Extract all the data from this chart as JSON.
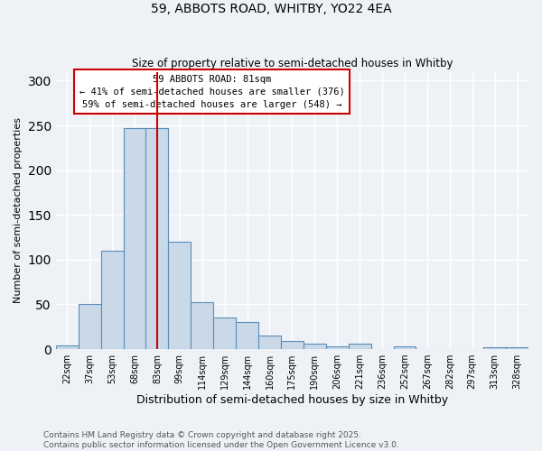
{
  "title1": "59, ABBOTS ROAD, WHITBY, YO22 4EA",
  "title2": "Size of property relative to semi-detached houses in Whitby",
  "xlabel": "Distribution of semi-detached houses by size in Whitby",
  "ylabel": "Number of semi-detached properties",
  "bin_labels": [
    "22sqm",
    "37sqm",
    "53sqm",
    "68sqm",
    "83sqm",
    "99sqm",
    "114sqm",
    "129sqm",
    "144sqm",
    "160sqm",
    "175sqm",
    "190sqm",
    "206sqm",
    "221sqm",
    "236sqm",
    "252sqm",
    "267sqm",
    "282sqm",
    "297sqm",
    "313sqm",
    "328sqm"
  ],
  "bar_heights": [
    4,
    50,
    110,
    247,
    247,
    120,
    52,
    35,
    30,
    15,
    9,
    6,
    3,
    6,
    0,
    3,
    0,
    0,
    0,
    2,
    2
  ],
  "bar_color": "#c9d9e8",
  "bar_edge_color": "#5b8db8",
  "vline_x": 4.0,
  "vline_color": "#cc0000",
  "annotation_text": "59 ABBOTS ROAD: 81sqm\n← 41% of semi-detached houses are smaller (376)\n59% of semi-detached houses are larger (548) →",
  "annotation_box_color": "#cc0000",
  "ylim": [
    0,
    310
  ],
  "yticks": [
    0,
    50,
    100,
    150,
    200,
    250,
    300
  ],
  "footnote": "Contains HM Land Registry data © Crown copyright and database right 2025.\nContains public sector information licensed under the Open Government Licence v3.0.",
  "background_color": "#eef2f7",
  "grid_color": "#ffffff"
}
